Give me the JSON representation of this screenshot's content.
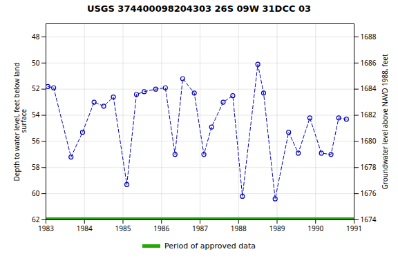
{
  "chart_data": {
    "type": "line",
    "title": "USGS 374400098204303 26S 09W 31DCC 03",
    "x": [
      1983.05,
      1983.2,
      1983.65,
      1983.95,
      1984.25,
      1984.5,
      1984.75,
      1985.1,
      1985.35,
      1985.55,
      1985.85,
      1986.1,
      1986.35,
      1986.55,
      1986.85,
      1987.1,
      1987.3,
      1987.6,
      1987.85,
      1988.1,
      1988.5,
      1988.65,
      1988.95,
      1989.3,
      1989.55,
      1989.85,
      1990.15,
      1990.4,
      1990.6,
      1990.8
    ],
    "values": [
      51.8,
      51.9,
      57.2,
      55.3,
      53.0,
      53.3,
      52.6,
      59.3,
      52.4,
      52.2,
      52.0,
      51.9,
      57.0,
      51.2,
      52.3,
      57.0,
      54.9,
      53.0,
      52.5,
      60.2,
      50.1,
      52.3,
      60.4,
      55.3,
      56.9,
      54.2,
      56.9,
      57.0,
      54.2,
      54.3
    ],
    "color": "#0000bb",
    "marker": "circle",
    "line_style": "dashed",
    "xlim": [
      1983,
      1991
    ],
    "xticks": [
      1983,
      1984,
      1985,
      1986,
      1987,
      1988,
      1989,
      1990,
      1991
    ],
    "ylim": [
      62,
      47
    ],
    "yticks": [
      48,
      50,
      52,
      54,
      56,
      58,
      60,
      62
    ],
    "y2lim": [
      1674,
      1689
    ],
    "y2ticks": [
      1688,
      1686,
      1684,
      1682,
      1680,
      1678,
      1676,
      1674
    ],
    "ylabel": "Depth to water level, feet below land\n surface",
    "y2label": "Groundwater level above NAVD 1988, feet",
    "hlines": [
      {
        "value": 62,
        "name": "Period of approved data",
        "color": "#22aa00"
      }
    ],
    "grid": true,
    "legend": "bottom"
  }
}
